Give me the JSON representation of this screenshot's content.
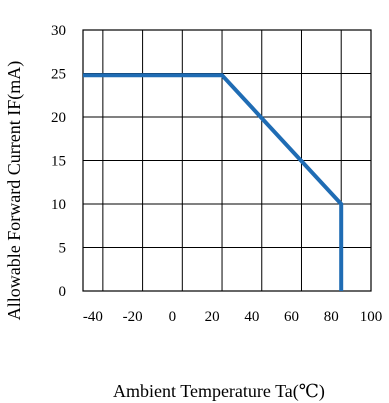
{
  "chart_data": {
    "type": "line",
    "title": "",
    "xlabel": "Ambient Temperature Ta(℃)",
    "ylabel": "Allowable Forward Current IF(mA)",
    "xlim": [
      -45,
      100
    ],
    "ylim": [
      0,
      30
    ],
    "x_ticks": [
      -40,
      -20,
      0,
      20,
      40,
      60,
      80,
      100
    ],
    "y_ticks": [
      0,
      5,
      10,
      15,
      20,
      25,
      30
    ],
    "x_gridlines": [
      -35,
      -15,
      5,
      25,
      45,
      65,
      85
    ],
    "y_gridlines": [
      5,
      10,
      15,
      20,
      25
    ],
    "grid": true,
    "legend": "none",
    "series": [
      {
        "color": "#1f6cb4",
        "x": [
          -45,
          25,
          85,
          85
        ],
        "y": [
          24.8,
          24.8,
          10,
          0
        ]
      }
    ]
  }
}
